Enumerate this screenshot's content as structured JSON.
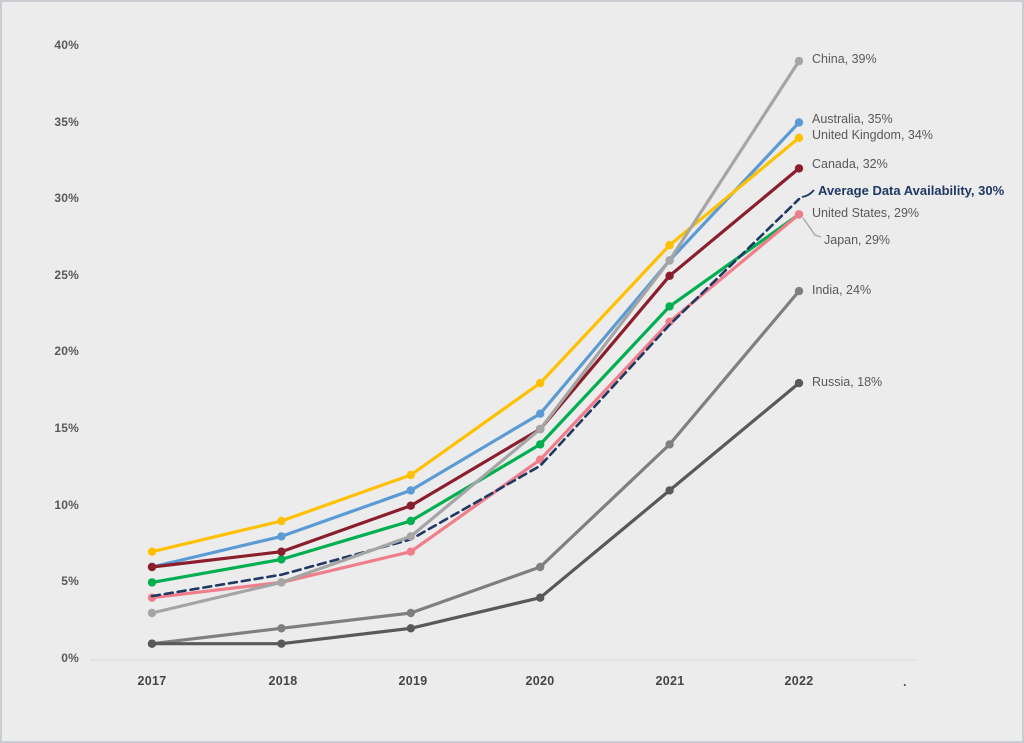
{
  "page": {
    "background_color": "#ECECEC",
    "border_color": "#C9CDD2"
  },
  "chart_data": {
    "type": "line",
    "title": "",
    "xlabel": "",
    "ylabel": "",
    "x_categories": [
      "2017",
      "2018",
      "2019",
      "2020",
      "2021",
      "2022"
    ],
    "y_tick_labels": [
      "40%",
      "35%",
      "30%",
      "25%",
      "20%",
      "15%",
      "10%",
      "5%",
      "0%"
    ],
    "ylim": [
      0,
      40
    ],
    "grid": false,
    "legend_position": "end-of-line-labels",
    "baseline_color": "#DCDCDC",
    "leader_line_color": "#A6A6A6",
    "axis_trailing_dot": ".",
    "series": [
      {
        "name": "China",
        "color": "#A5A5A5",
        "dashed": false,
        "values": [
          3,
          5,
          8,
          15,
          26,
          39
        ],
        "label": "China, 39%"
      },
      {
        "name": "Australia",
        "color": "#5B9BD5",
        "dashed": false,
        "values": [
          6,
          8,
          11,
          16,
          26,
          35
        ],
        "label": "Australia, 35%"
      },
      {
        "name": "United Kingdom",
        "color": "#FFC000",
        "dashed": false,
        "values": [
          7,
          9,
          12,
          18,
          27,
          34
        ],
        "label": "United Kingdom, 34%"
      },
      {
        "name": "Canada",
        "color": "#8B1E2D",
        "dashed": false,
        "values": [
          6,
          7,
          10,
          15,
          25,
          32
        ],
        "label": "Canada, 32%"
      },
      {
        "name": "Average Data Availability",
        "color": "#1F3864",
        "dashed": true,
        "values": [
          4.1,
          5.5,
          7.8,
          12.6,
          21.8,
          30
        ],
        "label": "Average Data Availability, 30%"
      },
      {
        "name": "United States",
        "color": "#F07E8A",
        "dashed": false,
        "values": [
          4,
          5,
          7,
          13,
          22,
          29
        ],
        "label": "United States, 29%"
      },
      {
        "name": "Japan",
        "color": "#00B050",
        "dashed": false,
        "values": [
          5,
          6.5,
          9,
          14,
          23,
          29
        ],
        "label": "Japan, 29%"
      },
      {
        "name": "India",
        "color": "#7F7F7F",
        "dashed": false,
        "values": [
          1,
          2,
          3,
          6,
          14,
          24
        ],
        "label": "India, 24%"
      },
      {
        "name": "Russia",
        "color": "#595959",
        "dashed": false,
        "values": [
          1,
          1,
          2,
          4,
          11,
          18
        ],
        "label": "Russia, 18%"
      }
    ]
  }
}
